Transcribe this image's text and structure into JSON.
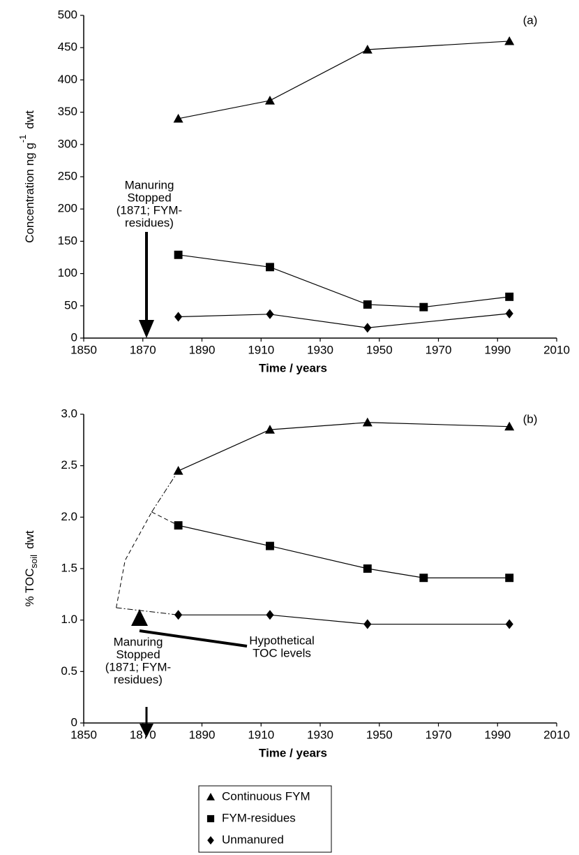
{
  "chart_data": [
    {
      "type": "line",
      "panel_label": "(a)",
      "xlabel": "Time / years",
      "ylabel_parts": [
        "Concentration ng g",
        "-1",
        "dwt"
      ],
      "xlim": [
        1850,
        2010
      ],
      "xticks": [
        1850,
        1870,
        1890,
        1910,
        1930,
        1950,
        1970,
        1990,
        2010
      ],
      "ylim": [
        0,
        500
      ],
      "yticks": [
        0,
        50,
        100,
        150,
        200,
        250,
        300,
        350,
        400,
        450,
        500
      ],
      "series": [
        {
          "name": "Continuous FYM",
          "color": "#000000",
          "marker": "triangle",
          "x": [
            1882,
            1913,
            1946,
            1994
          ],
          "values": [
            340,
            368,
            447,
            460
          ]
        },
        {
          "name": "FYM-residues",
          "color": "#000000",
          "marker": "square",
          "x": [
            1882,
            1913,
            1946,
            1965,
            1994
          ],
          "values": [
            129,
            110,
            52,
            48,
            64
          ]
        },
        {
          "name": "Unmanured",
          "color": "#000000",
          "marker": "diamond",
          "x": [
            1882,
            1913,
            1946,
            1994
          ],
          "values": [
            33,
            37,
            16,
            38
          ]
        }
      ],
      "annotation_lines": [
        "Manuring",
        "Stopped",
        "(1871; FYM-",
        "residues)"
      ]
    },
    {
      "type": "line",
      "panel_label": "(b)",
      "xlabel": "Time / years",
      "ylabel_parts": [
        "% TOC",
        "soil",
        "dwt"
      ],
      "xlim": [
        1850,
        2010
      ],
      "xticks": [
        1850,
        1870,
        1890,
        1910,
        1930,
        1950,
        1970,
        1990,
        2010
      ],
      "ylim": [
        0,
        3
      ],
      "yticks": [
        0,
        0.5,
        {
          "value": 1,
          "label": "1.0"
        },
        1.5,
        {
          "value": 2,
          "label": "2.0"
        },
        2.5,
        {
          "value": 3,
          "label": "3.0"
        }
      ],
      "series": [
        {
          "name": "Continuous FYM",
          "color": "#000000",
          "marker": "triangle",
          "x": [
            1882,
            1913,
            1946,
            1994
          ],
          "values": [
            2.45,
            2.85,
            2.92,
            2.88
          ]
        },
        {
          "name": "FYM-residues",
          "color": "#000000",
          "marker": "square",
          "x": [
            1882,
            1913,
            1946,
            1965,
            1994
          ],
          "values": [
            1.92,
            1.72,
            1.5,
            1.41,
            1.41
          ]
        },
        {
          "name": "Unmanured",
          "color": "#000000",
          "marker": "diamond",
          "x": [
            1882,
            1913,
            1946,
            1994
          ],
          "values": [
            1.05,
            1.05,
            0.96,
            0.96
          ]
        }
      ],
      "hypothetical": [
        {
          "dash": "6,4",
          "x": [
            1861,
            1864,
            1873
          ],
          "values": [
            1.12,
            1.58,
            2.05
          ]
        },
        {
          "dash": "8,3,2,3",
          "x": [
            1873,
            1882
          ],
          "values": [
            2.05,
            2.45
          ]
        },
        {
          "dash": "6,4",
          "x": [
            1873,
            1882
          ],
          "values": [
            2.05,
            1.92
          ]
        },
        {
          "dash": "8,3,2,3",
          "x": [
            1861,
            1882
          ],
          "values": [
            1.12,
            1.05
          ]
        }
      ],
      "annotation_lines": [
        "Manuring",
        "Stopped",
        "(1871; FYM-",
        "residues)"
      ],
      "annotation2_lines": [
        "Hypothetical",
        "TOC levels"
      ]
    }
  ]
}
